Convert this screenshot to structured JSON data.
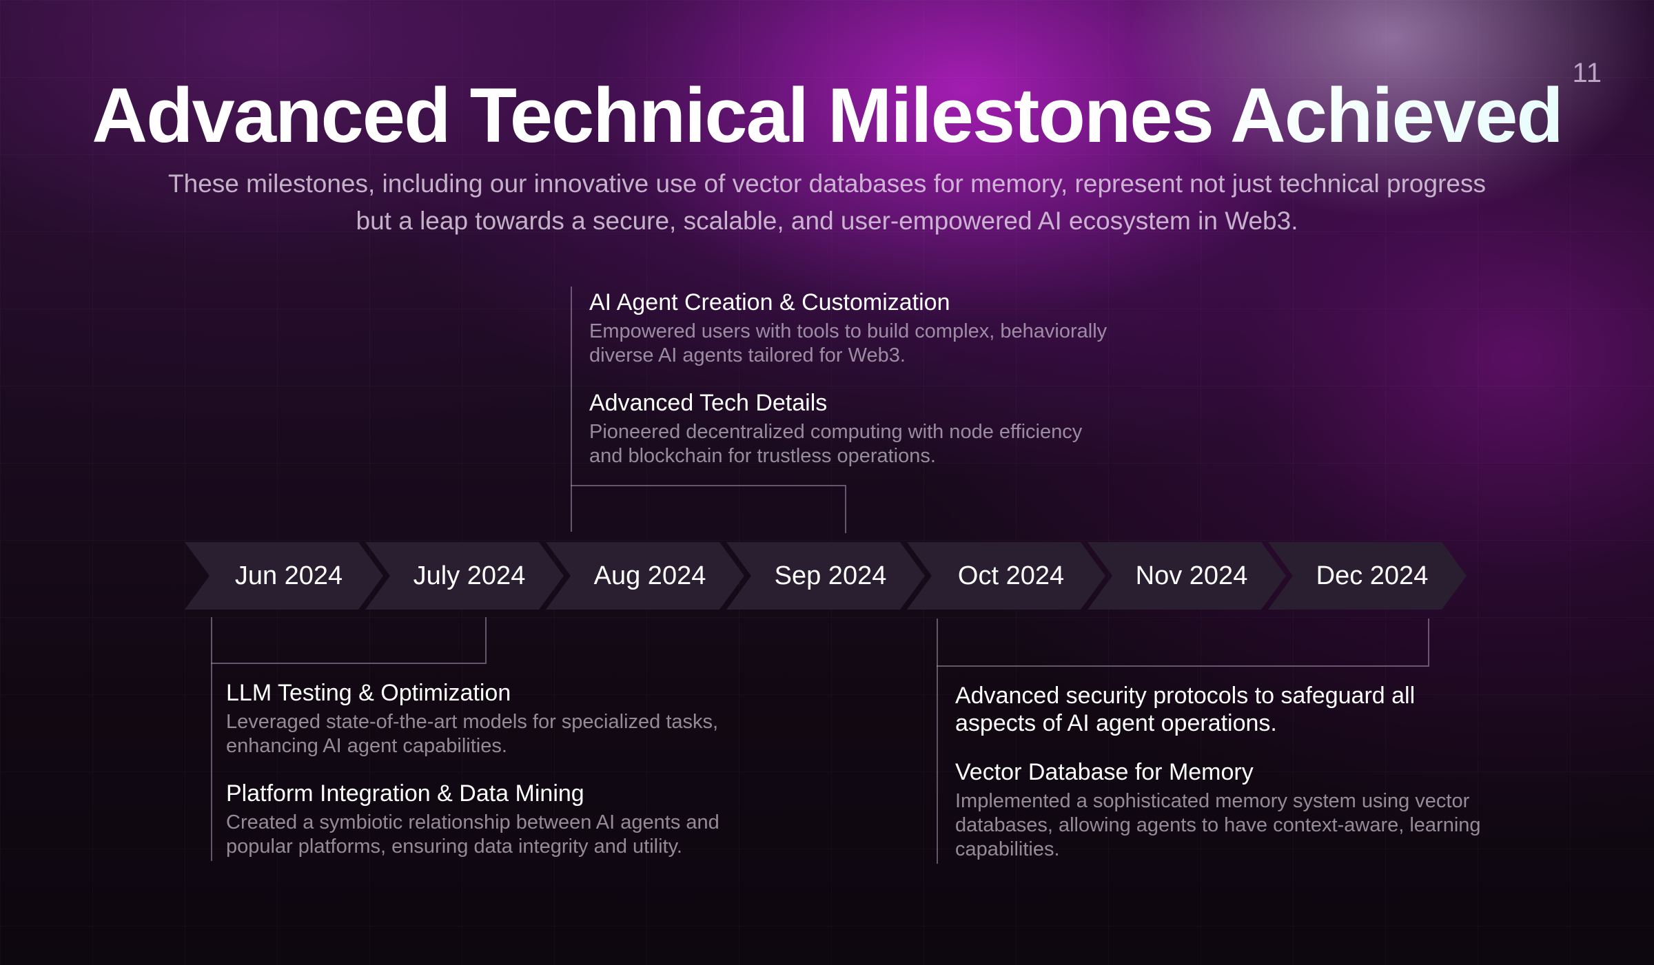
{
  "slide": {
    "page_number": "11",
    "title": "Advanced Technical Milestones Achieved",
    "subtitle_line1": "These milestones, including our innovative use of vector databases for memory, represent not just technical progress",
    "subtitle_line2": "but a leap towards a secure, scalable, and user-empowered AI ecosystem in Web3."
  },
  "timeline": {
    "months": [
      "Jun 2024",
      "July 2024",
      "Aug 2024",
      "Sep 2024",
      "Oct 2024",
      "Nov 2024",
      "Dec 2024"
    ]
  },
  "groups": {
    "top": {
      "items": [
        {
          "title": "AI Agent Creation & Customization",
          "desc_line1": "Empowered users with tools to build complex, behaviorally",
          "desc_line2": "diverse AI agents tailored for Web3."
        },
        {
          "title": "Advanced Tech Details",
          "desc_line1": "Pioneered decentralized computing with node efficiency",
          "desc_line2": "and blockchain for trustless operations."
        }
      ]
    },
    "bottom_left": {
      "items": [
        {
          "title": "LLM Testing & Optimization",
          "desc_line1": "Leveraged state-of-the-art models for specialized tasks,",
          "desc_line2": "enhancing AI agent capabilities."
        },
        {
          "title": "Platform Integration & Data Mining",
          "desc_line1": "Created a symbiotic relationship between AI agents and",
          "desc_line2": "popular platforms, ensuring data integrity and utility."
        }
      ]
    },
    "bottom_right": {
      "items": [
        {
          "title_line1": "Advanced security protocols to safeguard all",
          "title_line2": "aspects of AI agent operations."
        },
        {
          "title": "Vector Database for Memory",
          "desc_line1": "Implemented a sophisticated memory system using vector",
          "desc_line2": "databases, allowing agents to have context-aware, learning",
          "desc_line3": "capabilities."
        }
      ]
    }
  }
}
